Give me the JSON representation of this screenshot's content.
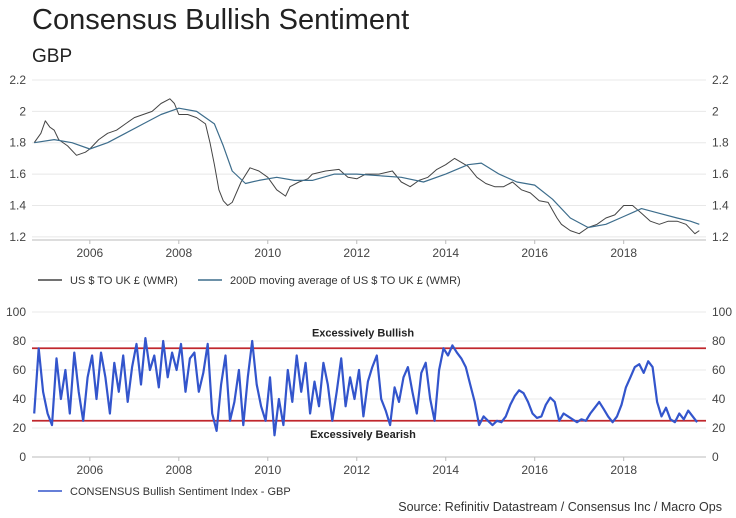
{
  "title": "Consensus Bullish Sentiment",
  "subtitle": "GBP",
  "source": "Source: Refinitiv Datastream / Consensus Inc / Macro Ops",
  "colors": {
    "price": "#444444",
    "ma": "#3d6d8c",
    "sentiment": "#3355cc",
    "threshold": "#c0272d",
    "grid": "#e8e8e8",
    "axis": "#bbbbbb"
  },
  "chart_data": [
    {
      "type": "line",
      "title": "GBP",
      "xlim": [
        2004.7,
        2019.85
      ],
      "ylim": [
        1.18,
        2.2
      ],
      "x_ticks": [
        2006,
        2008,
        2010,
        2012,
        2014,
        2016,
        2018
      ],
      "y_ticks": [
        1.2,
        1.4,
        1.6,
        1.8,
        2.0,
        2.2
      ],
      "grid": true,
      "legend_position": "bottom-left",
      "series": [
        {
          "name": "US $ TO UK £ (WMR)",
          "x": [
            2004.75,
            2004.9,
            2005.0,
            2005.1,
            2005.2,
            2005.3,
            2005.5,
            2005.7,
            2005.9,
            2006.0,
            2006.2,
            2006.4,
            2006.6,
            2006.8,
            2007.0,
            2007.2,
            2007.4,
            2007.6,
            2007.8,
            2007.9,
            2008.0,
            2008.2,
            2008.4,
            2008.6,
            2008.7,
            2008.8,
            2008.9,
            2009.0,
            2009.1,
            2009.2,
            2009.4,
            2009.6,
            2009.8,
            2010.0,
            2010.2,
            2010.4,
            2010.5,
            2010.7,
            2010.9,
            2011.0,
            2011.3,
            2011.6,
            2011.8,
            2012.0,
            2012.2,
            2012.5,
            2012.8,
            2013.0,
            2013.2,
            2013.4,
            2013.6,
            2013.8,
            2014.0,
            2014.2,
            2014.5,
            2014.7,
            2014.9,
            2015.1,
            2015.3,
            2015.5,
            2015.7,
            2015.9,
            2016.1,
            2016.3,
            2016.5,
            2016.6,
            2016.8,
            2017.0,
            2017.2,
            2017.4,
            2017.6,
            2017.8,
            2018.0,
            2018.2,
            2018.4,
            2018.6,
            2018.8,
            2019.0,
            2019.2,
            2019.4,
            2019.6,
            2019.7
          ],
          "y": [
            1.8,
            1.86,
            1.94,
            1.9,
            1.88,
            1.82,
            1.78,
            1.72,
            1.74,
            1.76,
            1.82,
            1.86,
            1.88,
            1.92,
            1.96,
            1.98,
            2.0,
            2.05,
            2.08,
            2.05,
            1.98,
            1.98,
            1.96,
            1.92,
            1.8,
            1.66,
            1.5,
            1.43,
            1.4,
            1.42,
            1.55,
            1.64,
            1.62,
            1.58,
            1.5,
            1.46,
            1.52,
            1.55,
            1.57,
            1.6,
            1.62,
            1.63,
            1.58,
            1.57,
            1.6,
            1.6,
            1.62,
            1.55,
            1.52,
            1.56,
            1.58,
            1.63,
            1.66,
            1.7,
            1.65,
            1.58,
            1.54,
            1.52,
            1.52,
            1.55,
            1.5,
            1.48,
            1.43,
            1.42,
            1.32,
            1.28,
            1.24,
            1.22,
            1.26,
            1.28,
            1.32,
            1.34,
            1.4,
            1.4,
            1.35,
            1.3,
            1.28,
            1.3,
            1.3,
            1.28,
            1.22,
            1.24
          ]
        },
        {
          "name": "200D moving average of US $ TO UK £ (WMR)",
          "x": [
            2004.75,
            2005.2,
            2005.6,
            2006.0,
            2006.4,
            2006.8,
            2007.2,
            2007.6,
            2008.0,
            2008.4,
            2008.8,
            2009.0,
            2009.2,
            2009.5,
            2009.8,
            2010.2,
            2010.6,
            2011.0,
            2011.5,
            2012.0,
            2012.5,
            2013.0,
            2013.5,
            2014.0,
            2014.5,
            2014.8,
            2015.2,
            2015.6,
            2016.0,
            2016.4,
            2016.8,
            2017.2,
            2017.6,
            2018.0,
            2018.4,
            2018.8,
            2019.2,
            2019.5,
            2019.7
          ],
          "y": [
            1.8,
            1.82,
            1.8,
            1.76,
            1.8,
            1.86,
            1.92,
            1.98,
            2.02,
            2.0,
            1.92,
            1.78,
            1.62,
            1.54,
            1.56,
            1.58,
            1.56,
            1.56,
            1.6,
            1.6,
            1.59,
            1.58,
            1.55,
            1.6,
            1.66,
            1.67,
            1.6,
            1.55,
            1.53,
            1.44,
            1.32,
            1.26,
            1.28,
            1.33,
            1.38,
            1.35,
            1.32,
            1.3,
            1.28
          ]
        }
      ]
    },
    {
      "type": "line",
      "title": "CONSENSUS Bullish Sentiment Index - GBP",
      "xlim": [
        2004.7,
        2019.85
      ],
      "ylim": [
        0,
        100
      ],
      "x_ticks": [
        2006,
        2008,
        2010,
        2012,
        2014,
        2016,
        2018
      ],
      "y_ticks": [
        0,
        20,
        40,
        60,
        80,
        100
      ],
      "grid": true,
      "legend_position": "bottom-left",
      "thresholds": [
        {
          "label": "Excessively Bullish",
          "value": 75
        },
        {
          "label": "Excessively Bearish",
          "value": 25
        }
      ],
      "series": [
        {
          "name": "CONSENSUS Bullish Sentiment Index - GBP",
          "x": [
            2004.75,
            2004.85,
            2004.95,
            2005.05,
            2005.15,
            2005.25,
            2005.35,
            2005.45,
            2005.55,
            2005.65,
            2005.75,
            2005.85,
            2005.95,
            2006.05,
            2006.15,
            2006.25,
            2006.35,
            2006.45,
            2006.55,
            2006.65,
            2006.75,
            2006.85,
            2006.95,
            2007.05,
            2007.15,
            2007.25,
            2007.35,
            2007.45,
            2007.55,
            2007.65,
            2007.75,
            2007.85,
            2007.95,
            2008.05,
            2008.15,
            2008.25,
            2008.35,
            2008.45,
            2008.55,
            2008.65,
            2008.75,
            2008.85,
            2008.95,
            2009.05,
            2009.15,
            2009.25,
            2009.35,
            2009.45,
            2009.55,
            2009.65,
            2009.75,
            2009.85,
            2009.95,
            2010.05,
            2010.15,
            2010.25,
            2010.35,
            2010.45,
            2010.55,
            2010.65,
            2010.75,
            2010.85,
            2010.95,
            2011.05,
            2011.15,
            2011.25,
            2011.35,
            2011.45,
            2011.55,
            2011.65,
            2011.75,
            2011.85,
            2011.95,
            2012.05,
            2012.15,
            2012.25,
            2012.35,
            2012.45,
            2012.55,
            2012.65,
            2012.75,
            2012.85,
            2012.95,
            2013.05,
            2013.15,
            2013.25,
            2013.35,
            2013.45,
            2013.55,
            2013.65,
            2013.75,
            2013.85,
            2013.95,
            2014.05,
            2014.15,
            2014.25,
            2014.35,
            2014.45,
            2014.55,
            2014.65,
            2014.75,
            2014.85,
            2014.95,
            2015.05,
            2015.15,
            2015.25,
            2015.35,
            2015.45,
            2015.55,
            2015.65,
            2015.75,
            2015.85,
            2015.95,
            2016.05,
            2016.15,
            2016.25,
            2016.35,
            2016.45,
            2016.55,
            2016.65,
            2016.75,
            2016.85,
            2016.95,
            2017.05,
            2017.15,
            2017.25,
            2017.35,
            2017.45,
            2017.55,
            2017.65,
            2017.75,
            2017.85,
            2017.95,
            2018.05,
            2018.15,
            2018.25,
            2018.35,
            2018.45,
            2018.55,
            2018.65,
            2018.75,
            2018.85,
            2018.95,
            2019.05,
            2019.15,
            2019.25,
            2019.35,
            2019.45,
            2019.55,
            2019.65
          ],
          "y": [
            30,
            75,
            45,
            30,
            22,
            68,
            40,
            60,
            30,
            72,
            45,
            25,
            55,
            70,
            40,
            72,
            55,
            30,
            65,
            45,
            70,
            38,
            62,
            78,
            50,
            82,
            60,
            70,
            48,
            80,
            55,
            72,
            60,
            78,
            45,
            68,
            72,
            45,
            58,
            78,
            30,
            18,
            50,
            70,
            25,
            38,
            60,
            22,
            55,
            80,
            50,
            35,
            25,
            55,
            15,
            40,
            22,
            60,
            38,
            70,
            45,
            65,
            30,
            52,
            35,
            65,
            50,
            25,
            45,
            68,
            35,
            55,
            40,
            60,
            28,
            52,
            62,
            70,
            40,
            32,
            22,
            48,
            38,
            55,
            62,
            45,
            30,
            58,
            65,
            40,
            25,
            60,
            75,
            70,
            77,
            72,
            68,
            62,
            50,
            38,
            22,
            28,
            25,
            22,
            25,
            24,
            28,
            36,
            42,
            46,
            44,
            38,
            30,
            27,
            28,
            36,
            41,
            38,
            25,
            30,
            28,
            26,
            24,
            26,
            25,
            30,
            34,
            38,
            33,
            28,
            24,
            28,
            36,
            48,
            55,
            62,
            64,
            58,
            66,
            62,
            38,
            28,
            34,
            26,
            24,
            30,
            26,
            32,
            28,
            24
          ]
        }
      ]
    }
  ]
}
